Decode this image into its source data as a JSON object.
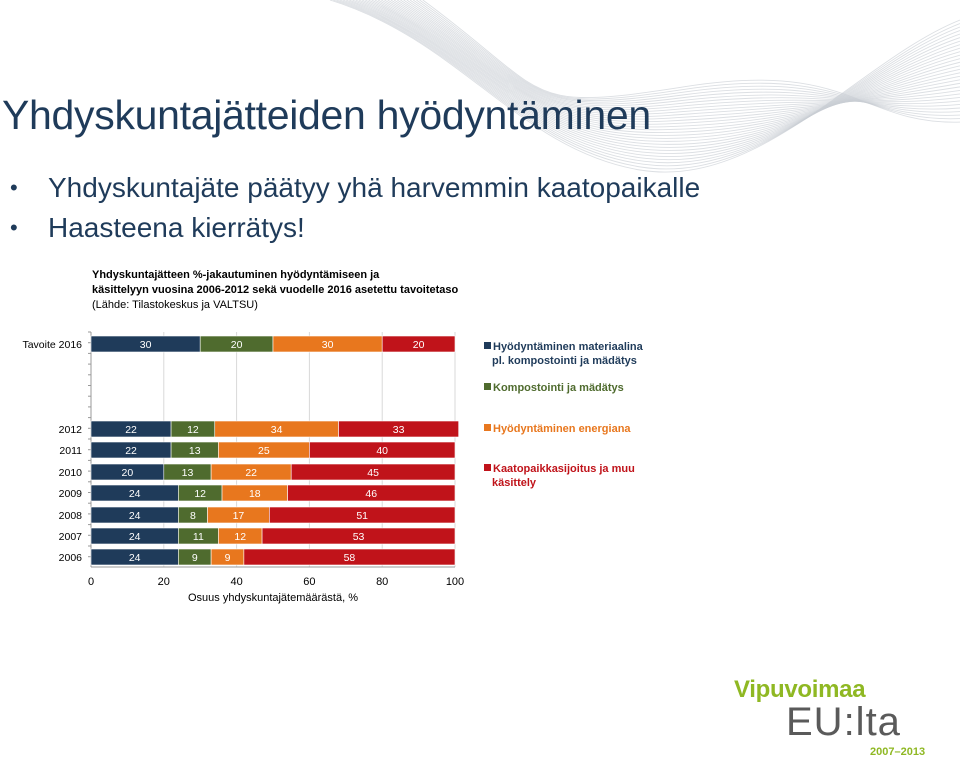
{
  "slide": {
    "title": "Yhdyskuntajätteiden hyödyntäminen",
    "bullets": [
      "Yhdyskuntajäte päätyy yhä harvemmin kaatopaikalle",
      "Haasteena kierrätys!"
    ]
  },
  "logo": {
    "line1": "Vipuvoimaa",
    "line2": "EU:lta",
    "years": "2007–2013",
    "color_green": "#8fb823",
    "color_gray": "#5a5a5a"
  },
  "chart_data": {
    "type": "bar",
    "orientation": "horizontal",
    "stacked": true,
    "title_lines": [
      "Yhdyskuntajätteen %-jakautuminen hyödyntämiseen ja",
      "käsittelyyn vuosina 2006-2012 sekä vuodelle 2016 asetettu tavoitetaso",
      "(Lähde: Tilastokeskus ja VALTSU)"
    ],
    "xlabel": "Osuus yhdyskuntajätemäärästä, %",
    "xlim": [
      0,
      100
    ],
    "xticks": [
      0,
      20,
      40,
      60,
      80,
      100
    ],
    "categories": [
      "Tavoite 2016",
      "2012",
      "2011",
      "2010",
      "2009",
      "2008",
      "2007",
      "2006"
    ],
    "series": [
      {
        "name": "Hyödyntäminen materiaalina pl. kompostointi ja mädätys",
        "color": "#1f3b5a",
        "values": [
          30,
          22,
          22,
          20,
          24,
          24,
          24,
          24
        ]
      },
      {
        "name": "Kompostointi ja mädätys",
        "color": "#4f6b2e",
        "values": [
          20,
          12,
          13,
          13,
          12,
          8,
          11,
          9
        ]
      },
      {
        "name": "Hyödyntäminen energiana",
        "color": "#e8771e",
        "values": [
          30,
          34,
          25,
          22,
          18,
          17,
          12,
          9
        ]
      },
      {
        "name": "Kaatopaikkasijoitus ja muu käsittely",
        "color": "#c0131a",
        "values": [
          20,
          33,
          40,
          45,
          46,
          51,
          53,
          58
        ]
      }
    ],
    "legend_position": "right",
    "grid": true
  }
}
